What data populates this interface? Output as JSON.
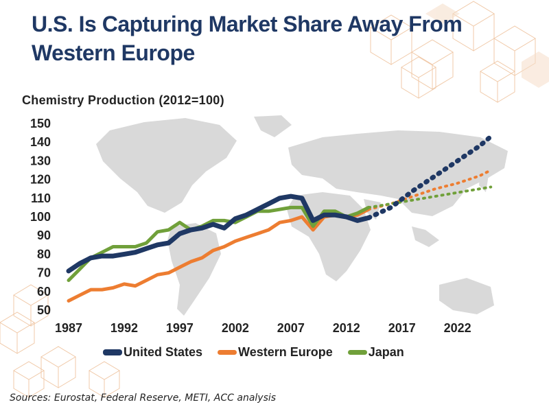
{
  "slide": {
    "title": "U.S. Is Capturing Market Share Away From Western Europe",
    "sources": "Sources: Eurostat, Federal Reserve, METI, ACC analysis"
  },
  "colors": {
    "title": "#1f3864",
    "us": "#1f3864",
    "europe": "#ed7d31",
    "japan": "#70a03a",
    "map": "#d9d9d9",
    "deco": "#f0c9a8"
  },
  "chart_data": {
    "type": "line",
    "title": "Chemistry Production (2012=100)",
    "xlabel": "",
    "ylabel": "",
    "xlim": [
      1987,
      2025
    ],
    "ylim": [
      50,
      150
    ],
    "x_ticks": [
      "1987",
      "1992",
      "1997",
      "2002",
      "2007",
      "2012",
      "2017",
      "2022"
    ],
    "y_ticks": [
      "150",
      "140",
      "130",
      "120",
      "110",
      "100",
      "90",
      "80",
      "70",
      "60",
      "50"
    ],
    "grid": false,
    "legend_position": "bottom",
    "background": "world-map",
    "series": [
      {
        "name": "United States",
        "color": "#1f3864",
        "actual": {
          "x": [
            1987,
            1988,
            1989,
            1990,
            1991,
            1992,
            1993,
            1994,
            1995,
            1996,
            1997,
            1998,
            1999,
            2000,
            2001,
            2002,
            2003,
            2004,
            2005,
            2006,
            2007,
            2008,
            2009,
            2010,
            2011,
            2012,
            2013,
            2014
          ],
          "y": [
            71,
            75,
            78,
            79,
            79,
            80,
            81,
            83,
            85,
            86,
            91,
            93,
            94,
            96,
            94,
            99,
            101,
            104,
            107,
            110,
            111,
            110,
            98,
            101,
            101,
            100,
            98,
            99.5
          ]
        },
        "projection": {
          "x": [
            2014,
            2016,
            2018,
            2020,
            2022,
            2024,
            2025
          ],
          "y": [
            99.5,
            105,
            114,
            122,
            130,
            138,
            143
          ]
        }
      },
      {
        "name": "Western Europe",
        "color": "#ed7d31",
        "actual": {
          "x": [
            1987,
            1988,
            1989,
            1990,
            1991,
            1992,
            1993,
            1994,
            1995,
            1996,
            1997,
            1998,
            1999,
            2000,
            2001,
            2002,
            2003,
            2004,
            2005,
            2006,
            2007,
            2008,
            2009,
            2010,
            2011,
            2012,
            2013,
            2014
          ],
          "y": [
            55,
            58,
            61,
            61,
            62,
            64,
            63,
            66,
            69,
            70,
            73,
            76,
            78,
            82,
            84,
            87,
            89,
            91,
            93,
            97,
            98,
            100,
            93,
            100,
            101,
            100,
            101,
            104
          ]
        },
        "projection": {
          "x": [
            2014,
            2016,
            2018,
            2020,
            2022,
            2024,
            2025
          ],
          "y": [
            104,
            107,
            111,
            115,
            118,
            122,
            125
          ]
        }
      },
      {
        "name": "Japan",
        "color": "#70a03a",
        "actual": {
          "x": [
            1987,
            1988,
            1989,
            1990,
            1991,
            1992,
            1993,
            1994,
            1995,
            1996,
            1997,
            1998,
            1999,
            2000,
            2001,
            2002,
            2003,
            2004,
            2005,
            2006,
            2007,
            2008,
            2009,
            2010,
            2011,
            2012,
            2013,
            2014
          ],
          "y": [
            66,
            72,
            78,
            81,
            84,
            84,
            84,
            86,
            92,
            93,
            97,
            93,
            95,
            98,
            98,
            97,
            100,
            103,
            103,
            104,
            105,
            105,
            95,
            103,
            103,
            100,
            102,
            105
          ]
        },
        "projection": {
          "x": [
            2014,
            2016,
            2018,
            2020,
            2022,
            2024,
            2025
          ],
          "y": [
            105,
            107,
            109,
            111,
            113,
            115,
            116
          ]
        }
      }
    ]
  }
}
